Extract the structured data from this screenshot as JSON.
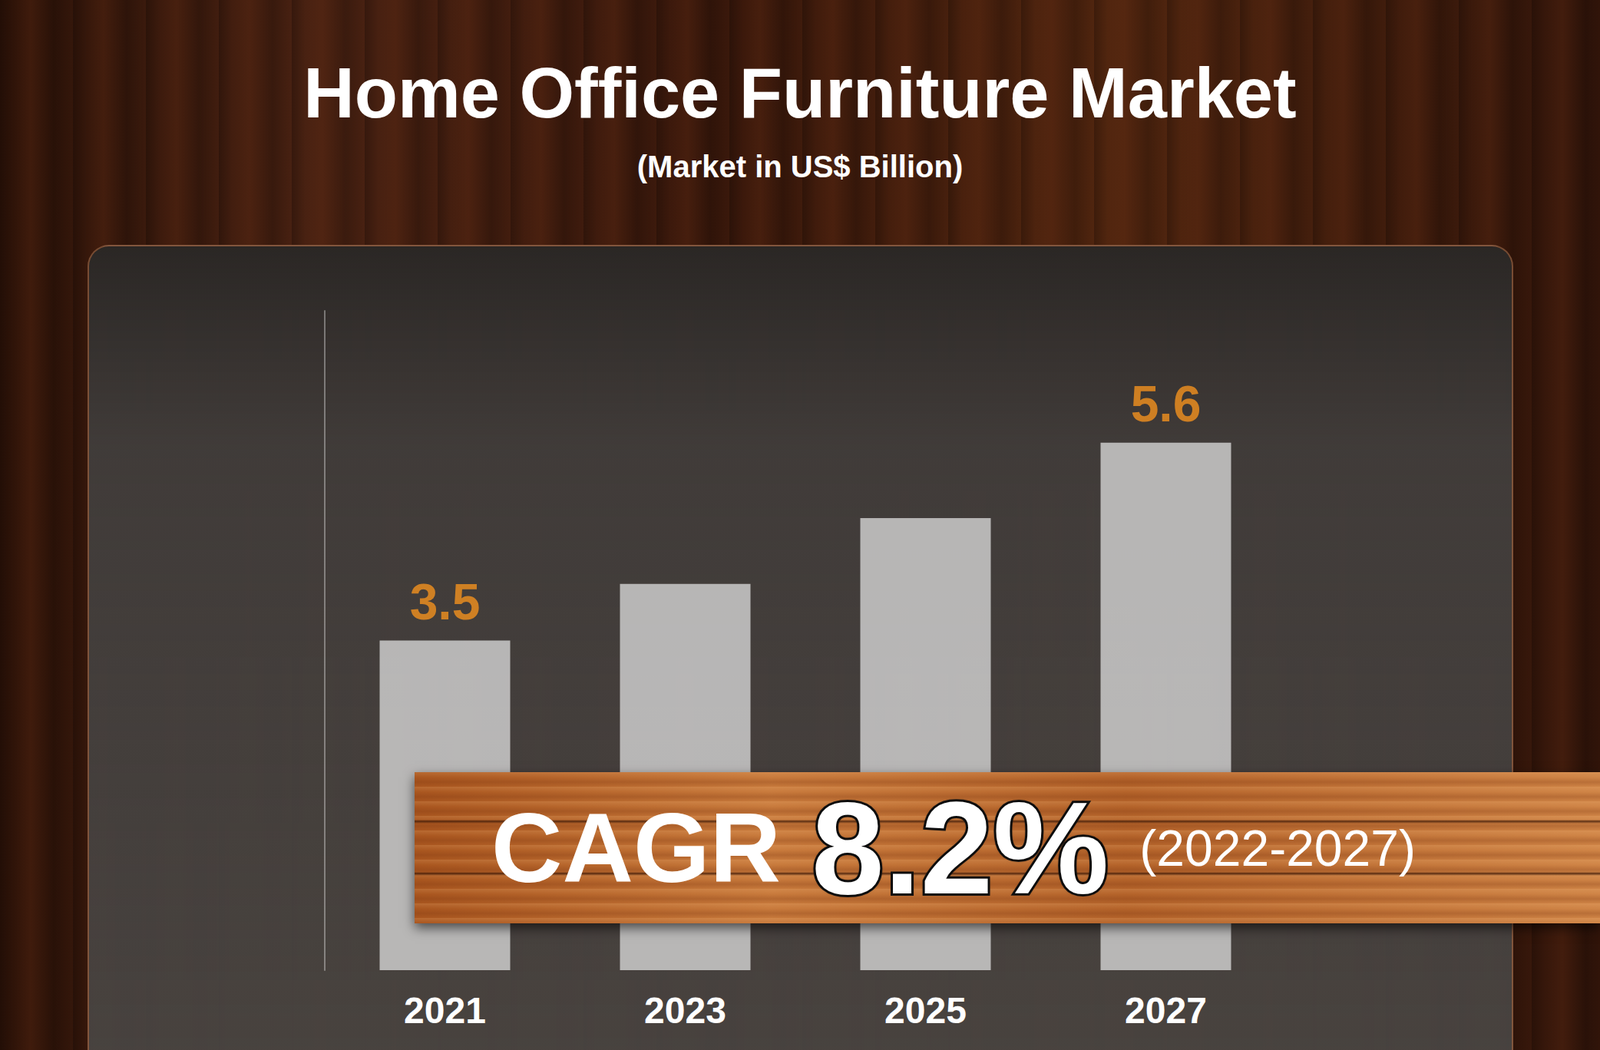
{
  "chart_data": {
    "type": "bar",
    "title": "Home Office Furniture Market",
    "subtitle": "(Market in US$ Billion)",
    "categories": [
      "2021",
      "2023",
      "2025",
      "2027"
    ],
    "values": [
      3.5,
      4.1,
      4.8,
      5.6
    ],
    "value_labels": [
      "3.5",
      null,
      null,
      "5.6"
    ],
    "color": "#d9d9d9",
    "ylim": [
      0,
      7
    ],
    "grid": false,
    "data_labels": true,
    "tick_labels": "x",
    "annotations": [
      {
        "label": "CAGR",
        "text": "8.2%",
        "period": "(2022-2027)"
      }
    ]
  }
}
